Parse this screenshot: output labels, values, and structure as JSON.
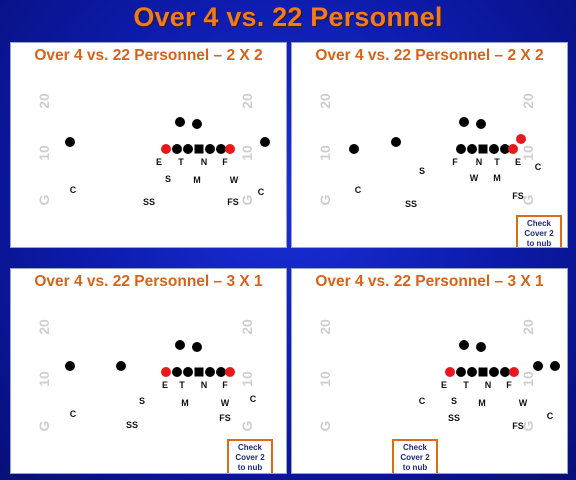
{
  "title": "Over 4 vs. 22 Personnel",
  "panels": [
    {
      "title": "Over 4 vs. 22 Personnel – 2 X 2",
      "check": null,
      "yard_left": [
        "20",
        "10",
        "G"
      ],
      "yard_right": [
        "20",
        "10",
        "G"
      ],
      "labels": [
        "E",
        "T",
        "N",
        "F",
        "S",
        "M",
        "W",
        "C",
        "C",
        "SS",
        "FS"
      ]
    },
    {
      "title": "Over 4 vs. 22 Personnel – 2 X 2",
      "check": [
        "Check",
        "Cover 2",
        "to nub side"
      ],
      "yard_left": [
        "20",
        "10",
        "G"
      ],
      "yard_right": [
        "20",
        "10",
        "G"
      ],
      "labels": [
        "F",
        "N",
        "T",
        "E",
        "S",
        "W",
        "M",
        "C",
        "C",
        "SS",
        "FS"
      ]
    },
    {
      "title": "Over 4 vs. 22 Personnel – 3 X 1",
      "check": [
        "Check",
        "Cover 2",
        "to nub side"
      ],
      "yard_left": [
        "20",
        "10",
        "G"
      ],
      "yard_right": [
        "20",
        "10",
        "G"
      ],
      "labels": [
        "E",
        "T",
        "N",
        "F",
        "S",
        "M",
        "W",
        "C",
        "C",
        "SS",
        "FS"
      ]
    },
    {
      "title": "Over 4 vs. 22 Personnel – 3 X 1",
      "check": [
        "Check",
        "Cover 2",
        "to nub side"
      ],
      "yard_left": [
        "20",
        "10",
        "G"
      ],
      "yard_right": [
        "20",
        "10",
        "G"
      ],
      "labels": [
        "E",
        "T",
        "N",
        "F",
        "C",
        "S",
        "M",
        "W",
        "C",
        "SS",
        "FS"
      ]
    }
  ]
}
